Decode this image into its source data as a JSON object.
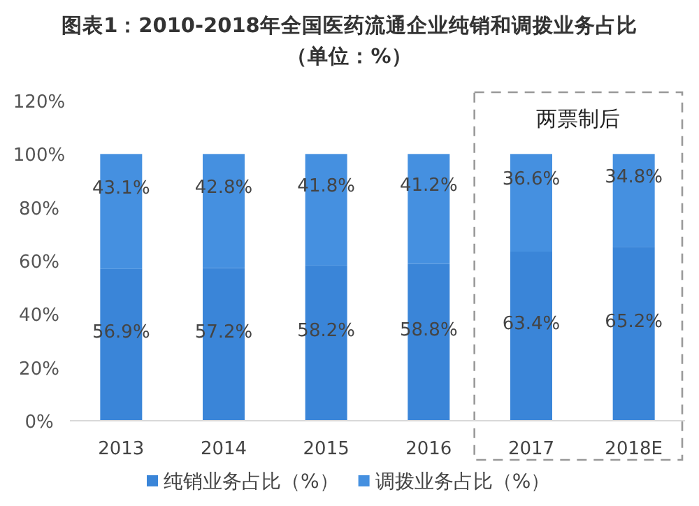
{
  "chart_data": {
    "type": "bar",
    "stacked": true,
    "title": "图表1：2010-2018年全国医药流通企业纯销和调拨业务占比（单位：%）",
    "categories": [
      "2013",
      "2014",
      "2015",
      "2016",
      "2017",
      "2018E"
    ],
    "series": [
      {
        "name": "纯销业务占比（%）",
        "color": "#3a85d8",
        "values": [
          56.9,
          57.2,
          58.2,
          58.8,
          63.4,
          65.2
        ],
        "value_labels": [
          "56.9%",
          "57.2%",
          "58.2%",
          "58.8%",
          "63.4%",
          "65.2%"
        ]
      },
      {
        "name": "调拨业务占比（%）",
        "color": "#4590e0",
        "values": [
          43.1,
          42.8,
          41.8,
          41.2,
          36.6,
          34.8
        ],
        "value_labels": [
          "43.1%",
          "42.8%",
          "41.8%",
          "41.2%",
          "36.6%",
          "34.8%"
        ]
      }
    ],
    "ylim": [
      0,
      120
    ],
    "yticks": [
      {
        "value": 0,
        "label": "0%"
      },
      {
        "value": 20,
        "label": "20%"
      },
      {
        "value": 40,
        "label": "40%"
      },
      {
        "value": 60,
        "label": "60%"
      },
      {
        "value": 80,
        "label": "80%"
      },
      {
        "value": 100,
        "label": "100%"
      },
      {
        "value": 120,
        "label": "120%"
      }
    ],
    "annotations": [
      "两票制后"
    ],
    "legend": "bottom",
    "grid": false
  }
}
